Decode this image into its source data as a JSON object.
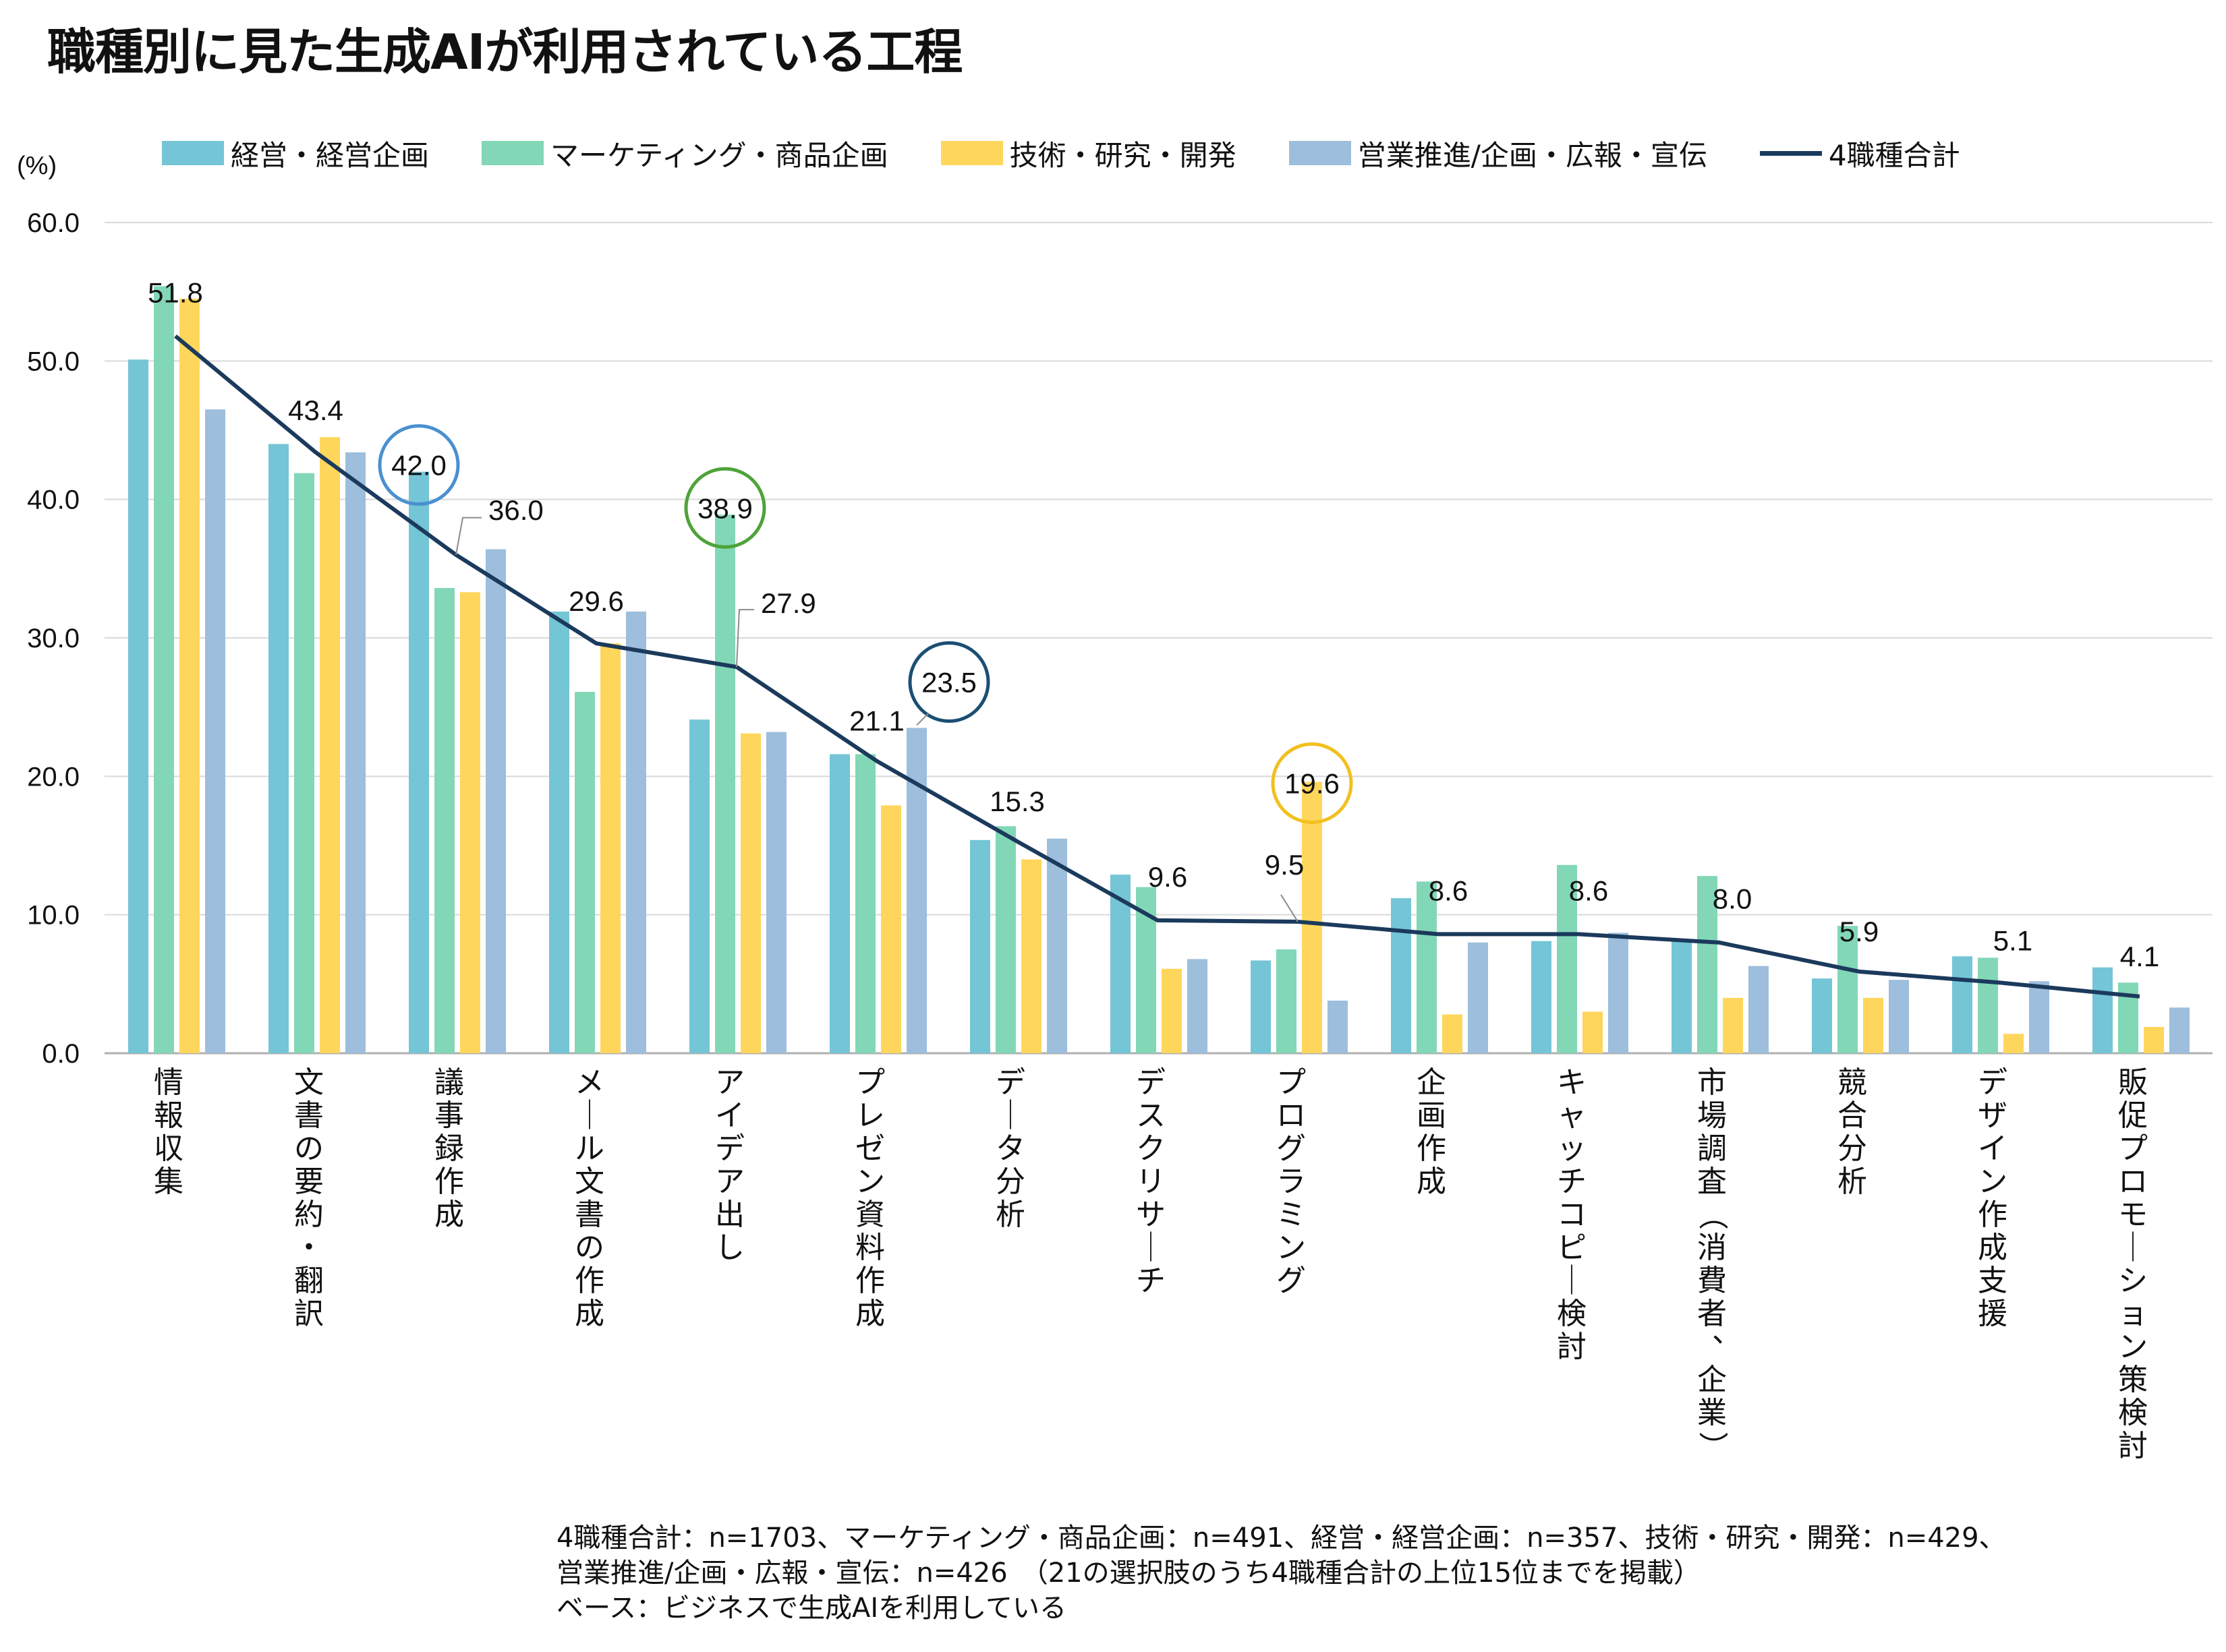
{
  "title": "職種別に見た生成AIが利用されている工程",
  "chart_data": {
    "type": "bar",
    "ylabel": "(%)",
    "ylim": [
      0,
      60
    ],
    "yticks": [
      "0.0",
      "10.0",
      "20.0",
      "30.0",
      "40.0",
      "50.0",
      "60.0"
    ],
    "grid": true,
    "legend_position": "top",
    "categories": [
      "情報収集",
      "文書の要約・翻訳",
      "議事録作成",
      "メール文書の作成",
      "アイデア出し",
      "プレゼン資料作成",
      "データ分析",
      "デスクリサーチ",
      "プログラミング",
      "企画作成",
      "キャッチコピー検討",
      "市場調査（消費者、企業）",
      "競合分析",
      "デザイン作成支援",
      "販促プロモーション策検討"
    ],
    "series": [
      {
        "name": "経営・経営企画",
        "type": "bar",
        "color": "#74C5D6",
        "values": [
          50.1,
          44.0,
          42.0,
          31.9,
          24.1,
          21.6,
          15.4,
          12.9,
          6.7,
          11.2,
          8.1,
          8.1,
          5.4,
          7.0,
          6.2
        ]
      },
      {
        "name": "マーケティング・商品企画",
        "type": "bar",
        "color": "#82D7B6",
        "values": [
          55.4,
          41.9,
          33.6,
          26.1,
          38.9,
          21.6,
          16.4,
          12.0,
          7.5,
          12.4,
          13.6,
          12.8,
          9.2,
          6.9,
          5.1
        ]
      },
      {
        "name": "技術・研究・開発",
        "type": "bar",
        "color": "#FFD65C",
        "values": [
          54.5,
          44.5,
          33.3,
          29.6,
          23.1,
          17.9,
          14.0,
          6.1,
          19.6,
          2.8,
          3.0,
          4.0,
          4.0,
          1.4,
          1.9
        ]
      },
      {
        "name": "営業推進/企画・広報・宣伝",
        "type": "bar",
        "color": "#9DBEDC",
        "values": [
          46.5,
          43.4,
          36.4,
          31.9,
          23.2,
          23.5,
          15.5,
          6.8,
          3.8,
          8.0,
          8.7,
          6.3,
          5.3,
          5.2,
          3.3
        ]
      },
      {
        "name": "4職種合計",
        "type": "line",
        "color": "#1B3A5C",
        "values": [
          51.8,
          43.4,
          36.0,
          29.6,
          27.9,
          21.1,
          15.3,
          9.6,
          9.5,
          8.6,
          8.6,
          8.0,
          5.9,
          5.1,
          4.1
        ]
      }
    ],
    "data_labels": [
      "51.8",
      "43.4",
      "36.0",
      "29.6",
      "27.9",
      "21.1",
      "15.3",
      "9.6",
      "9.5",
      "8.6",
      "8.6",
      "8.0",
      "5.9",
      "5.1",
      "4.1"
    ],
    "annotations": [
      {
        "text": "42.0",
        "category_index": 2,
        "series_index": 0,
        "color": "#4A90D0"
      },
      {
        "text": "38.9",
        "category_index": 4,
        "series_index": 1,
        "color": "#4EA33A"
      },
      {
        "text": "23.5",
        "category_index": 5,
        "series_index": 3,
        "color": "#1B4F72"
      },
      {
        "text": "19.6",
        "category_index": 8,
        "series_index": 2,
        "color": "#F2C01E"
      }
    ]
  },
  "notes": {
    "line1": "4職種合計：n=1703、マーケティング・商品企画：n=491、経営・経営企画：n=357、技術・研究・開発：n=429、",
    "line2": "営業推進/企画・広報・宣伝：n=426　（21の選択肢のうち4職種合計の上位15位までを掲載）",
    "line3": "ベース：ビジネスで生成AIを利用している"
  }
}
